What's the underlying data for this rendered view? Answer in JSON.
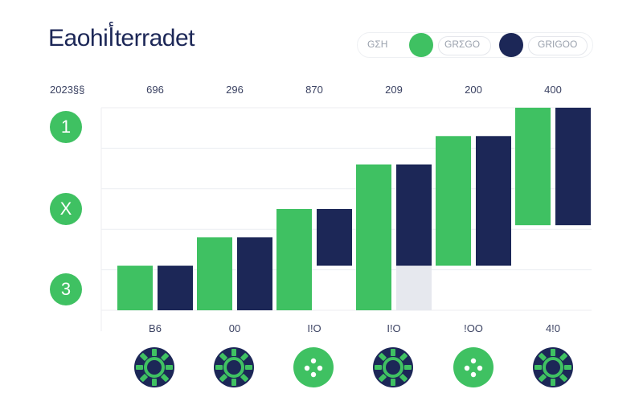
{
  "header": {
    "title": "Eaohiأterradet"
  },
  "legend": {
    "lead_text": "GΣH",
    "item1_text": "GRΣGO",
    "item2_text": "GRIGOO",
    "item1_color": "#3fc162",
    "item2_color": "#1c2757"
  },
  "year_label": "2023§§",
  "side_badges": [
    "1",
    "X",
    "3"
  ],
  "colors": {
    "green": "#3fc162",
    "navy": "#1c2757",
    "grey": "#e6e8ee",
    "grid": "#eceef2"
  },
  "coin_icons": [
    "coin-navy-icon",
    "coin-navy-icon",
    "coin-green-icon",
    "coin-navy-icon",
    "coin-green-icon",
    "coin-navy-icon"
  ],
  "chart_data": {
    "type": "bar",
    "top_labels": [
      "696",
      "296",
      "870",
      "209",
      "200",
      "400"
    ],
    "bottom_labels": [
      "B6",
      "00",
      "I!O",
      "I!O",
      "!OO",
      "4!0"
    ],
    "ylim": [
      0,
      5
    ],
    "series": [
      {
        "color": "#3fc162",
        "segments": [
          [
            0,
            1.1
          ],
          [
            0,
            1.8
          ],
          [
            0,
            2.5
          ],
          [
            0,
            3.6
          ],
          [
            1.1,
            4.3
          ],
          [
            2.1,
            5.0
          ]
        ]
      },
      {
        "color": "#1c2757",
        "segments": [
          [
            0,
            1.1
          ],
          [
            0,
            1.8
          ],
          [
            1.1,
            2.5
          ],
          [
            1.1,
            3.6
          ],
          [
            1.1,
            4.3
          ],
          [
            2.1,
            5.0
          ]
        ]
      }
    ],
    "extra_segments": [
      {
        "group": 3,
        "color": "#e6e8ee",
        "segment": [
          0,
          1.1
        ]
      }
    ]
  }
}
